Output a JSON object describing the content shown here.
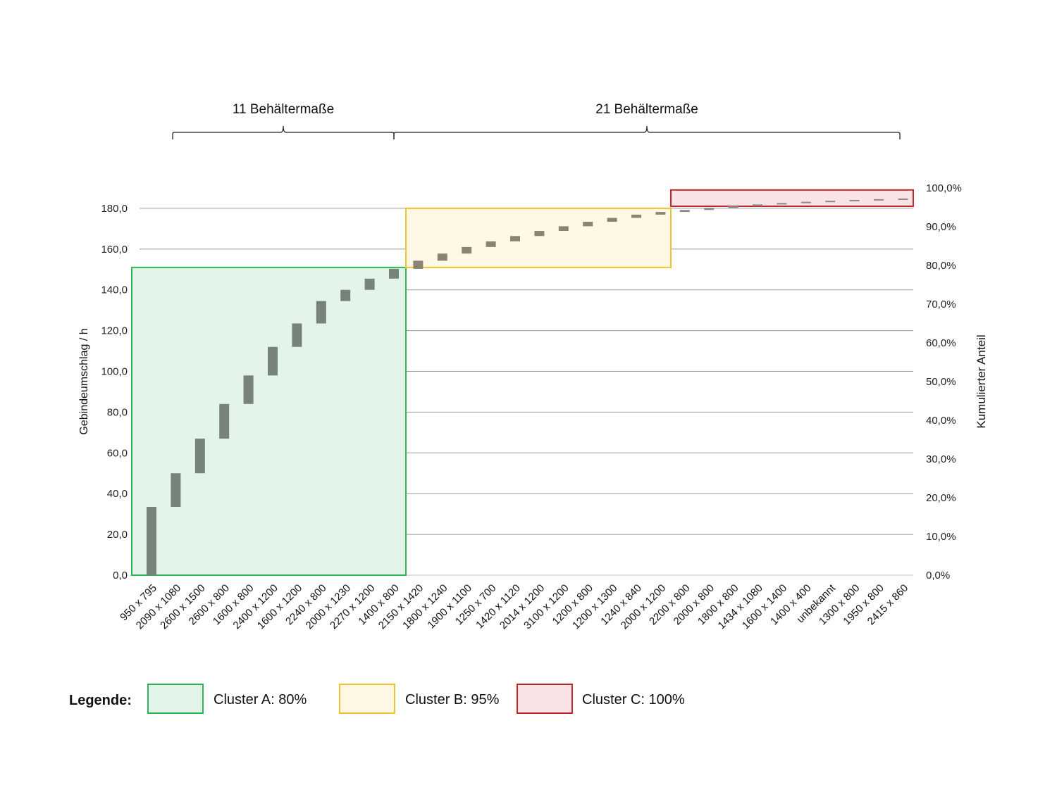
{
  "chart_data": {
    "type": "bar",
    "subtype": "waterfall",
    "categories": [
      "950 x 795",
      "2090 x 1080",
      "2600 x 1500",
      "2600 x 800",
      "1600 x 800",
      "2400 x 1200",
      "1600 x 1200",
      "2240 x 800",
      "2000 x 1230",
      "2270 x 1200",
      "1400 x 800",
      "2150 x 1420",
      "1800 x 1240",
      "1900 x 1100",
      "1250 x 700",
      "1420 x 1120",
      "2014 x 1200",
      "3100 x 1200",
      "1200 x 800",
      "1200 x 1300",
      "1240 x 840",
      "2000 x 1200",
      "2200 x 800",
      "2000 x 800",
      "1800 x 800",
      "1434 x 1080",
      "1600 x 1400",
      "1400 x 400",
      "unbekannt",
      "1300 x 800",
      "1950 x 800",
      "2415 x 860"
    ],
    "values": [
      33.5,
      16.5,
      17.0,
      17.0,
      14.0,
      14.0,
      11.5,
      11.0,
      5.5,
      5.5,
      4.8,
      4.0,
      3.5,
      3.2,
      2.8,
      2.6,
      2.5,
      2.3,
      2.2,
      1.9,
      1.6,
      1.3,
      1.0,
      1.0,
      0.9,
      0.8,
      0.7,
      0.6,
      0.5,
      0.4,
      0.4,
      0.3
    ],
    "ylabel": "Gebindeumschlag / h",
    "y2label": "Kumulierter Anteil",
    "ylim": [
      0,
      190
    ],
    "yticks": [
      "0,0",
      "20,0",
      "40,0",
      "60,0",
      "80,0",
      "100,0",
      "120,0",
      "140,0",
      "160,0",
      "180,0"
    ],
    "y2ticks": [
      "0,0%",
      "10,0%",
      "20,0%",
      "30,0%",
      "40,0%",
      "50,0%",
      "60,0%",
      "70,0%",
      "80,0%",
      "90,0%",
      "100,0%"
    ],
    "grid": true,
    "clusters": [
      {
        "name": "Cluster A: 80%",
        "start": 0,
        "end": 10,
        "ymin": 0,
        "ymax": 151,
        "stroke": "#2fb457",
        "fill": "#e3f5ea"
      },
      {
        "name": "Cluster B: 95%",
        "start": 11,
        "end": 21,
        "ymin": 151,
        "ymax": 180,
        "stroke": "#f2c12e",
        "fill": "#fff8e4"
      },
      {
        "name": "Cluster C: 100%",
        "start": 22,
        "end": 31,
        "ymin": 181,
        "ymax": 189,
        "stroke": "#c0272d",
        "fill": "#f9e3e4"
      }
    ],
    "braces": [
      {
        "label": "11 Behältermaße",
        "start": 0,
        "end": 10
      },
      {
        "label": "21 Behältermaße",
        "start": 11,
        "end": 31
      }
    ],
    "bar_colors": {
      "a": "#76827a",
      "b": "#8b8474",
      "c": "#8a8a8a"
    }
  },
  "legend": {
    "title": "Legende:",
    "items": [
      {
        "label": "Cluster A: 80%",
        "stroke": "#2fb457",
        "fill": "#e3f5ea"
      },
      {
        "label": "Cluster B: 95%",
        "stroke": "#f2c12e",
        "fill": "#fff8e4"
      },
      {
        "label": "Cluster C: 100%",
        "stroke": "#c0272d",
        "fill": "#f9e3e4"
      }
    ]
  }
}
